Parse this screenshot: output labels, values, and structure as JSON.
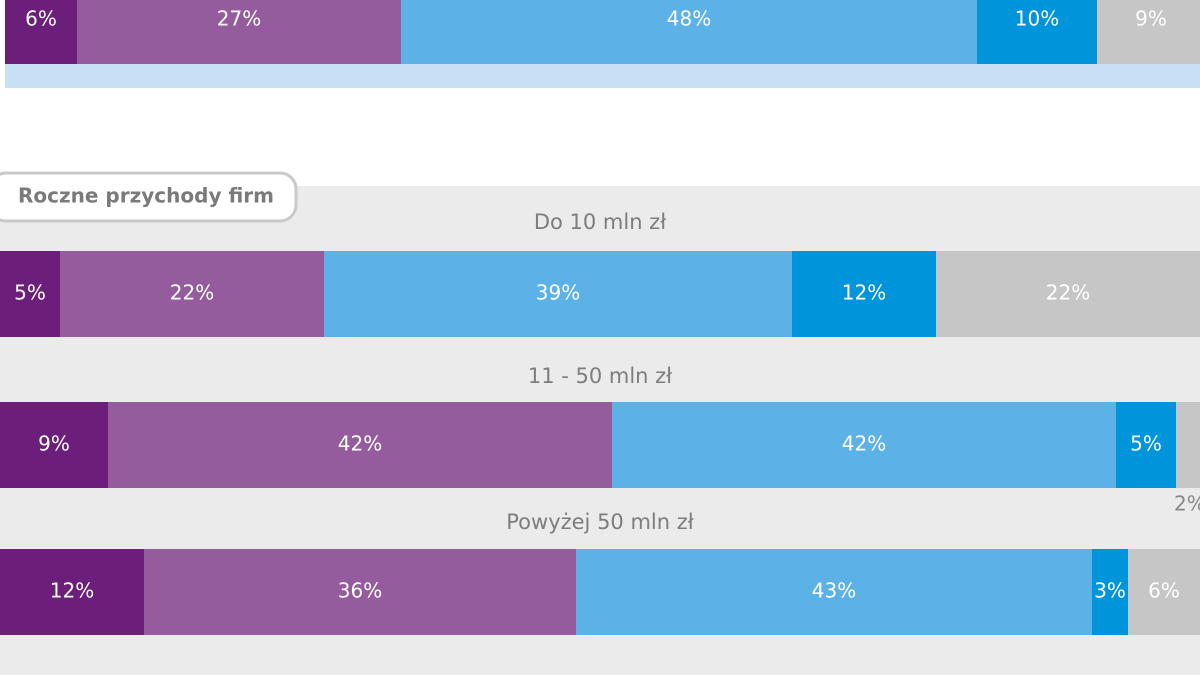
{
  "chart_data": {
    "type": "stacked-barh",
    "subtitle": "Roczne przychody firm",
    "categories": [
      null,
      "Do 10 mln zł",
      "11 - 50 mln zł",
      "Powyżej 50 mln zł"
    ],
    "xlim": [
      0,
      100
    ],
    "series": [
      {
        "color": "#6b1f7b",
        "values": [
          6,
          5,
          9,
          12
        ],
        "value_labels": [
          "6%",
          "5%",
          "9%",
          "12%"
        ]
      },
      {
        "color": "#955c9d",
        "values": [
          27,
          22,
          42,
          36
        ],
        "value_labels": [
          "27%",
          "22%",
          "42%",
          "36%"
        ]
      },
      {
        "color": "#5cb2e6",
        "values": [
          48,
          39,
          42,
          43
        ],
        "value_labels": [
          "48%",
          "39%",
          "42%",
          "43%"
        ]
      },
      {
        "color": "#0095da",
        "values": [
          10,
          12,
          5,
          3
        ],
        "value_labels": [
          "10%",
          "12%",
          "5%",
          "3%"
        ]
      },
      {
        "color": "#c6c6c6",
        "values": [
          9,
          22,
          2,
          6
        ],
        "value_labels": [
          "9%",
          "22%",
          "2%",
          "6%"
        ]
      }
    ]
  }
}
